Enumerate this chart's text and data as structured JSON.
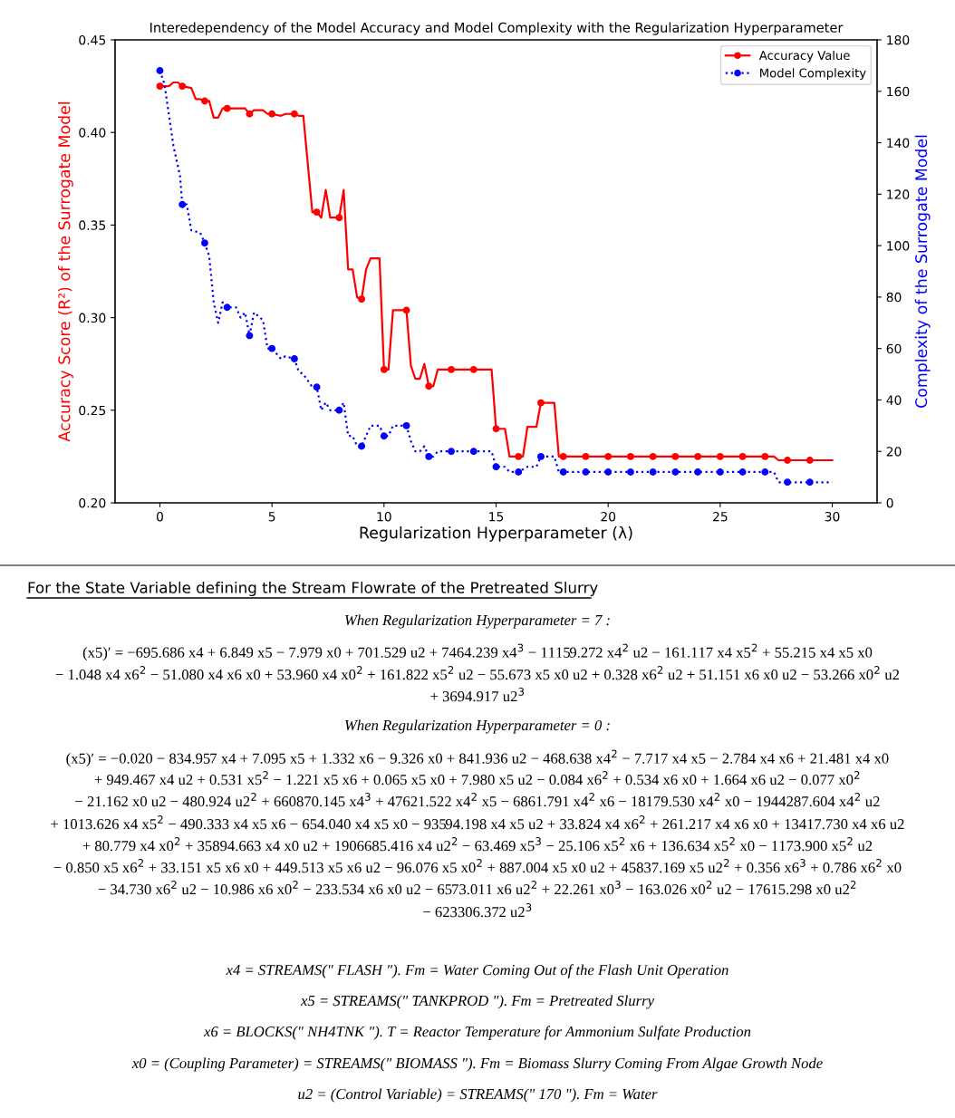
{
  "chart_data": {
    "type": "line",
    "title": "Interedependency of the Model Accuracy and Model Complexity with the Regularization Hyperparameter",
    "xlabel": "Regularization Hyperparameter (λ)",
    "ylabel": "Accuracy Score (R²) of the Surrogate Model",
    "y2label": "Complexity of the Surrogate Model",
    "xlim": [
      -2,
      32
    ],
    "xticks": [
      0,
      5,
      10,
      15,
      20,
      25,
      30
    ],
    "ylim": [
      0.2,
      0.45
    ],
    "yticks": [
      {
        "value": 0.2,
        "label": "0.20"
      },
      0.25,
      {
        "value": 0.3,
        "label": "0.30"
      },
      0.35,
      {
        "value": 0.4,
        "label": "0.40"
      },
      0.45
    ],
    "y2lim": [
      0,
      180
    ],
    "y2ticks": [
      0,
      20,
      40,
      60,
      80,
      100,
      120,
      140,
      160,
      180
    ],
    "grid": false,
    "legend": "top right",
    "marker": "none",
    "series": [
      {
        "name": "Accuracy Value",
        "color": "#ff0000",
        "line_style": "solid",
        "x": [
          0,
          0.4,
          0.6,
          0.8,
          1,
          1.4,
          1.6,
          1.8,
          2,
          2.2,
          2.4,
          2.6,
          2.8,
          3,
          3.4,
          3.8,
          4,
          4.2,
          4.6,
          4.8,
          5,
          5.4,
          5.6,
          6,
          6.2,
          6.4,
          6.8,
          7,
          7.2,
          7.4,
          7.6,
          8,
          8.2,
          8.4,
          8.6,
          8.8,
          9,
          9.2,
          9.4,
          9.8,
          10,
          10.2,
          10.4,
          11,
          11.2,
          11.4,
          11.6,
          11.8,
          12,
          12.2,
          12.4,
          13,
          14,
          14.8,
          15,
          15.4,
          15.6,
          16,
          16.2,
          16.4,
          16.8,
          17,
          17.6,
          17.8,
          18,
          19,
          20,
          21,
          22,
          23,
          24,
          25,
          26,
          27,
          27.4,
          27.6,
          28,
          29,
          30
        ],
        "values": [
          0.425,
          0.425,
          0.427,
          0.427,
          0.425,
          0.424,
          0.418,
          0.418,
          0.417,
          0.417,
          0.408,
          0.408,
          0.413,
          0.413,
          0.413,
          0.413,
          0.41,
          0.412,
          0.412,
          0.41,
          0.41,
          0.409,
          0.41,
          0.41,
          0.409,
          0.409,
          0.357,
          0.357,
          0.354,
          0.369,
          0.354,
          0.354,
          0.369,
          0.326,
          0.326,
          0.311,
          0.31,
          0.326,
          0.332,
          0.332,
          0.272,
          0.272,
          0.304,
          0.304,
          0.274,
          0.267,
          0.267,
          0.275,
          0.263,
          0.263,
          0.272,
          0.272,
          0.272,
          0.272,
          0.24,
          0.24,
          0.225,
          0.225,
          0.225,
          0.241,
          0.241,
          0.254,
          0.254,
          0.225,
          0.225,
          0.225,
          0.225,
          0.225,
          0.225,
          0.225,
          0.225,
          0.225,
          0.225,
          0.225,
          0.225,
          0.223,
          0.223,
          0.223,
          0.223
        ]
      },
      {
        "type": "scatter",
        "color": "#ff0000",
        "marker": "circle",
        "x": [
          0,
          1,
          2,
          3,
          4,
          5,
          6,
          7,
          8,
          9,
          10,
          11,
          12,
          13,
          14,
          15,
          16,
          17,
          18,
          19,
          20,
          21,
          22,
          23,
          24,
          25,
          26,
          27,
          28,
          29
        ],
        "values": [
          0.425,
          0.425,
          0.417,
          0.413,
          0.41,
          0.41,
          0.41,
          0.357,
          0.354,
          0.31,
          0.272,
          0.304,
          0.263,
          0.272,
          0.272,
          0.24,
          0.225,
          0.254,
          0.225,
          0.225,
          0.225,
          0.225,
          0.225,
          0.225,
          0.225,
          0.225,
          0.225,
          0.225,
          0.223,
          0.223
        ]
      },
      {
        "name": "Model Complexity",
        "color": "#0000ff",
        "line_style": "dotted",
        "axis": "y2",
        "x": [
          0,
          0.2,
          0.4,
          0.6,
          0.8,
          0.9,
          1,
          1.2,
          1.4,
          1.8,
          2,
          2.2,
          2.4,
          2.6,
          2.8,
          3,
          3.4,
          3.6,
          3.8,
          4,
          4.2,
          4.6,
          4.8,
          5,
          5.4,
          5.6,
          6,
          6.2,
          6.4,
          6.8,
          7,
          7.2,
          7.4,
          7.6,
          8,
          8.2,
          8.4,
          8.6,
          8.8,
          9,
          9.2,
          9.4,
          9.8,
          10,
          10.2,
          10.4,
          11,
          11.2,
          11.4,
          11.6,
          11.8,
          12,
          12.2,
          12.4,
          13,
          14,
          14.8,
          15,
          15.4,
          15.6,
          16,
          16.4,
          16.8,
          17,
          17.6,
          17.8,
          18,
          19,
          20,
          21,
          22,
          23,
          24,
          25,
          26,
          27,
          27.4,
          27.6,
          28,
          29,
          30
        ],
        "values": [
          168,
          163,
          151,
          139,
          131,
          127,
          116,
          116,
          106,
          105,
          101,
          96,
          78,
          70,
          78,
          76,
          76,
          72,
          74,
          65,
          74,
          71,
          60,
          60,
          56,
          57,
          56,
          51,
          50,
          45,
          45,
          36,
          39,
          36,
          36,
          39,
          26,
          26,
          22,
          22,
          26,
          30,
          30,
          26,
          26,
          30,
          30,
          24,
          20,
          20,
          22,
          18,
          18,
          20,
          20,
          20,
          20,
          14,
          14,
          12,
          12,
          14,
          14,
          18,
          18,
          12,
          12,
          12,
          12,
          12,
          12,
          12,
          12,
          12,
          12,
          12,
          12,
          8,
          8,
          8,
          8
        ]
      },
      {
        "type": "scatter",
        "color": "#0000ff",
        "marker": "circle",
        "axis": "y2",
        "x": [
          0,
          1,
          2,
          3,
          4,
          5,
          6,
          7,
          8,
          9,
          10,
          11,
          12,
          13,
          14,
          15,
          16,
          17,
          18,
          19,
          20,
          21,
          22,
          23,
          24,
          25,
          26,
          27,
          28,
          29
        ],
        "values": [
          168,
          116,
          101,
          76,
          65,
          60,
          56,
          45,
          36,
          22,
          26,
          30,
          18,
          20,
          20,
          14,
          12,
          18,
          12,
          12,
          12,
          12,
          12,
          12,
          12,
          12,
          12,
          12,
          8,
          8
        ]
      }
    ],
    "annotations": [
      "For the State Variable defining the Stream Flowrate of the Pretreated Slurry",
      "When Regularization Hyperparameter = 7 :",
      "(x5)′ = −695.686 x4 + 6.849 x5 − 7.979 x0 + 701.529 u2 + 7464.239 x4$^{3}$ − 11159.272 x4$^{2}$ u2 − 161.117 x4 x5$^{2}$ + 55.215 x4 x5 x0",
      "− 1.048 x4 x6$^{2}$ − 51.080 x4 x6 x0 + 53.960 x4 x0$^{2}$ + 161.822 x5$^{2}$ u2 − 55.673 x5 x0 u2 + 0.328 x6$^{2}$ u2 + 51.151 x6 x0 u2 − 53.266 x0$^{2}$ u2",
      "+ 3694.917 u2$^{3}$",
      "When Regularization Hyperparameter = 0 :",
      "(x5)′ = −0.020 − 834.957 x4 + 7.095 x5 + 1.332 x6 − 9.326 x0 + 841.936 u2 − 468.638 x4$^{2}$ − 7.717 x4 x5 − 2.784 x4 x6 + 21.481 x4 x0",
      "+ 949.467 x4 u2 + 0.531 x5$^{2}$ − 1.221 x5 x6 + 0.065 x5 x0 + 7.980 x5 u2 − 0.084 x6$^{2}$ + 0.534 x6 x0 + 1.664 x6 u2 − 0.077 x0$^{2}$",
      "− 21.162 x0 u2 − 480.924 u2$^{2}$ + 660870.145 x4$^{3}$ + 47621.522 x4$^{2}$ x5 − 6861.791 x4$^{2}$ x6 − 18179.530 x4$^{2}$ x0 − 1944287.604 x4$^{2}$ u2",
      "+ 1013.626 x4 x5$^{2}$ − 490.333 x4 x5 x6 − 654.040 x4 x5 x0 − 93594.198 x4 x5 u2 + 33.824 x4 x6$^{2}$ + 261.217 x4 x6 x0 + 13417.730 x4 x6 u2",
      "+ 80.779 x4 x0$^{2}$ + 35894.663 x4 x0 u2 + 1906685.416 x4 u2$^{2}$ − 63.469 x5$^{3}$ − 25.106 x5$^{2}$ x6 + 136.634 x5$^{2}$ x0 − 1173.900 x5$^{2}$ u2",
      "− 0.850 x5 x6$^{2}$ + 33.151 x5 x6 x0 + 449.513 x5 x6 u2 − 96.076 x5 x0$^{2}$ + 887.004 x5 x0 u2 + 45837.169 x5 u2$^{2}$ + 0.356 x6$^{3}$ + 0.786 x6$^{2}$ x0",
      "− 34.730 x6$^{2}$ u2 − 10.986 x6 x0$^{2}$ − 233.534 x6 x0 u2 − 6573.011 x6 u2$^{2}$ + 22.261 x0$^{3}$ − 163.026 x0$^{2}$ u2 − 17615.298 x0 u2$^{2}$",
      "− 623306.372 u2$^{3}$",
      "x4 = STREAMS(\" FLASH \"). Fm = Water Coming Out of the Flash Unit Operation",
      "x5 = STREAMS(\" TANKPROD \"). Fm = Pretreated Slurry",
      "x6 = BLOCKS(\" NH4TNK \"). T = Reactor Temperature for Ammonium Sulfate Production",
      "x0 = (Coupling Parameter) = STREAMS(\" BIOMASS \"). Fm = Biomass Slurry Coming From Algae Growth Node",
      "u2 = (Control Variable) = STREAMS(\" 170 \"). Fm = Water"
    ]
  }
}
